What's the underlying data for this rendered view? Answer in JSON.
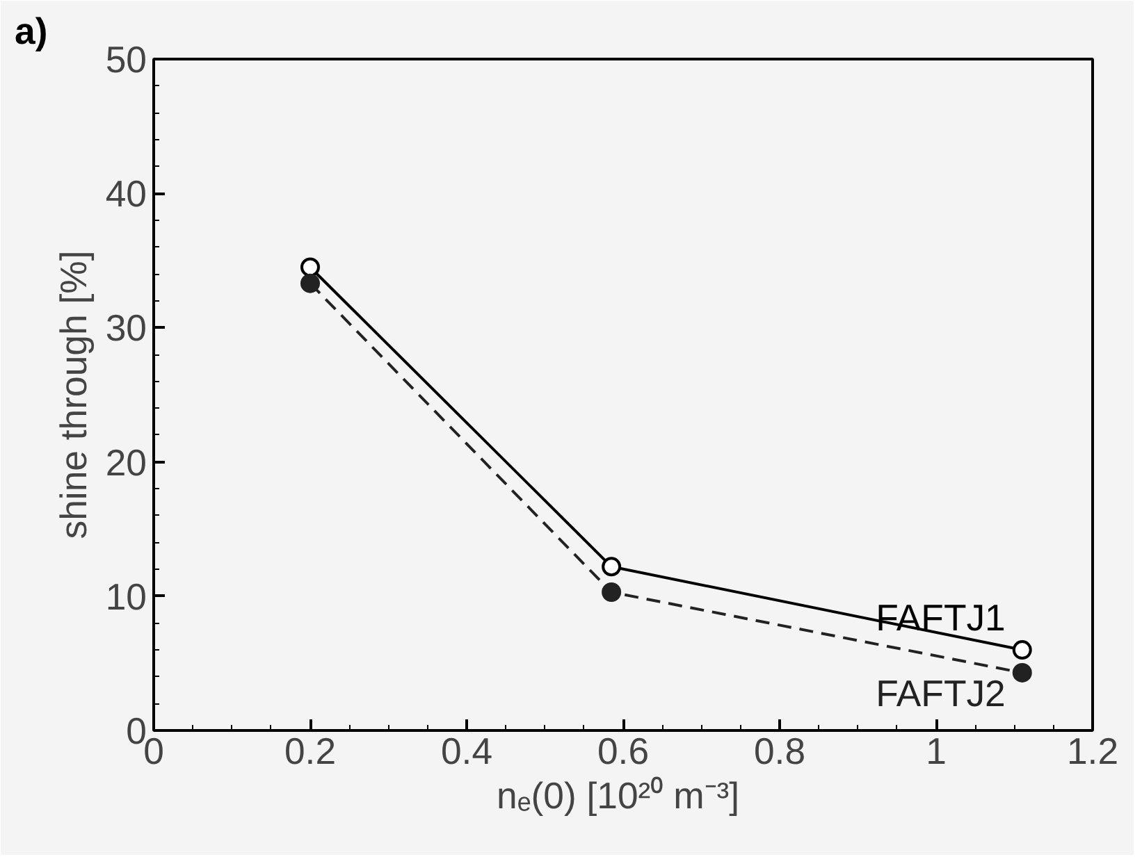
{
  "chart_data": {
    "type": "line",
    "xlabel": "nₑ(0)  [10²⁰ m⁻³]",
    "ylabel": "shine through [%]",
    "annotations": [
      "a)"
    ],
    "xlim": [
      0,
      1.2
    ],
    "xticks": [
      0,
      0.2,
      0.4,
      0.6,
      0.8,
      {
        "value": 1,
        "label": "1"
      },
      1.2
    ],
    "ylim": [
      0,
      50
    ],
    "yticks": [
      0,
      10,
      20,
      30,
      40,
      50
    ],
    "marker": "circle",
    "grid": false,
    "series": [
      {
        "name": "FAFTJ1",
        "color": "#000000",
        "line_style": "solid",
        "x": [
          0.2,
          0.585,
          1.11
        ],
        "values": [
          34.5,
          12.2,
          6.0
        ]
      },
      {
        "name": "FAFTJ2",
        "color": "#222222",
        "line_style": "dashed",
        "x": [
          0.2,
          0.585,
          1.11
        ],
        "values": [
          33.3,
          10.3,
          4.3
        ]
      }
    ]
  }
}
